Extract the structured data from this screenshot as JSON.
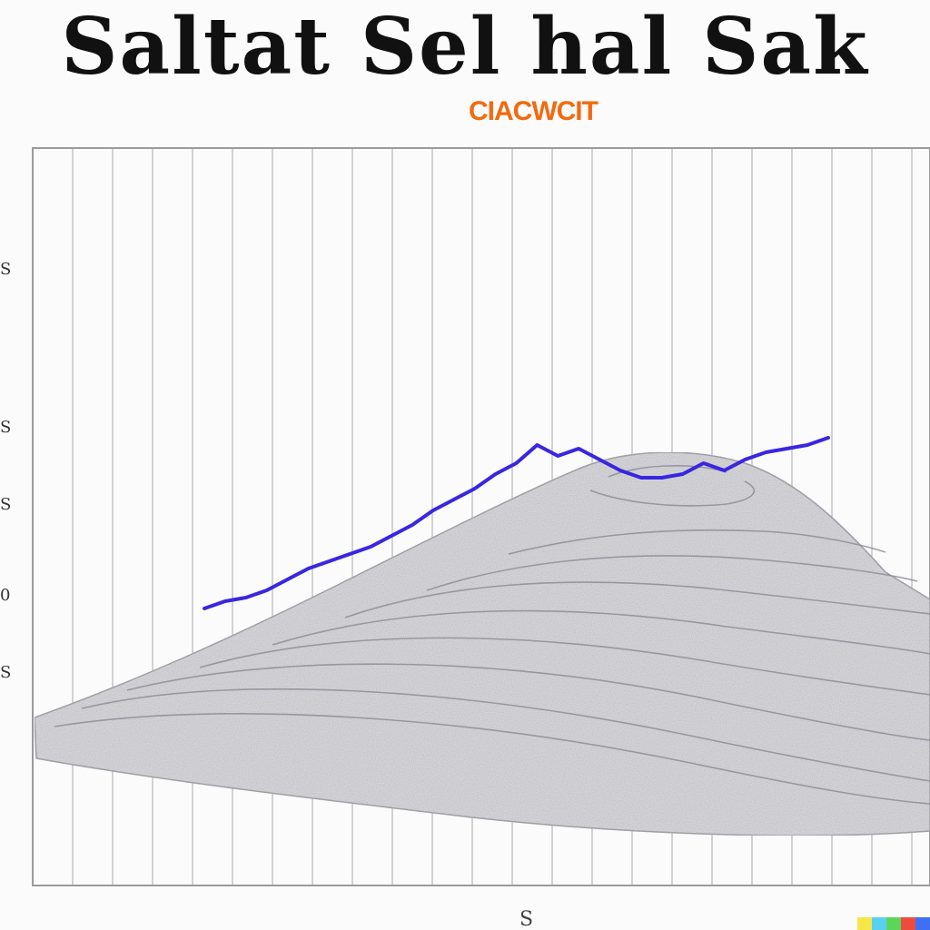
{
  "title": "Saltat Sel hal Sak",
  "subtitle": "CIACWCIT",
  "side_ticks": [
    "S",
    "S",
    "S",
    "S",
    "0",
    "S"
  ],
  "footer_mark": "S",
  "chart_data": {
    "type": "line",
    "title": "Saltat Sel hal Sak",
    "subtitle": "CIACWCIT",
    "xlabel": "",
    "ylabel": "",
    "grid": "vertical",
    "series": [
      {
        "color": "#3a26e0",
        "values": [
          [
            0.0,
            0.3
          ],
          [
            0.03,
            0.32
          ],
          [
            0.06,
            0.33
          ],
          [
            0.09,
            0.35
          ],
          [
            0.12,
            0.38
          ],
          [
            0.15,
            0.41
          ],
          [
            0.18,
            0.43
          ],
          [
            0.21,
            0.45
          ],
          [
            0.24,
            0.47
          ],
          [
            0.27,
            0.5
          ],
          [
            0.3,
            0.53
          ],
          [
            0.33,
            0.57
          ],
          [
            0.36,
            0.6
          ],
          [
            0.39,
            0.63
          ],
          [
            0.42,
            0.67
          ],
          [
            0.45,
            0.7
          ],
          [
            0.48,
            0.75
          ],
          [
            0.51,
            0.72
          ],
          [
            0.54,
            0.74
          ],
          [
            0.57,
            0.71
          ],
          [
            0.6,
            0.68
          ],
          [
            0.63,
            0.66
          ],
          [
            0.66,
            0.66
          ],
          [
            0.69,
            0.67
          ],
          [
            0.72,
            0.7
          ],
          [
            0.75,
            0.68
          ],
          [
            0.78,
            0.71
          ],
          [
            0.81,
            0.73
          ],
          [
            0.84,
            0.74
          ],
          [
            0.87,
            0.75
          ],
          [
            0.9,
            0.77
          ]
        ]
      }
    ]
  },
  "colors": {
    "title": "#111111",
    "subtitle": "#f26a10",
    "line": "#3a26e0",
    "grid": "#bdbdbd",
    "mound": "#d9d9dd"
  },
  "color_strip": [
    "#f6e64a",
    "#5ad0f0",
    "#5cd65a",
    "#ef4b3c",
    "#3f6ff2"
  ]
}
